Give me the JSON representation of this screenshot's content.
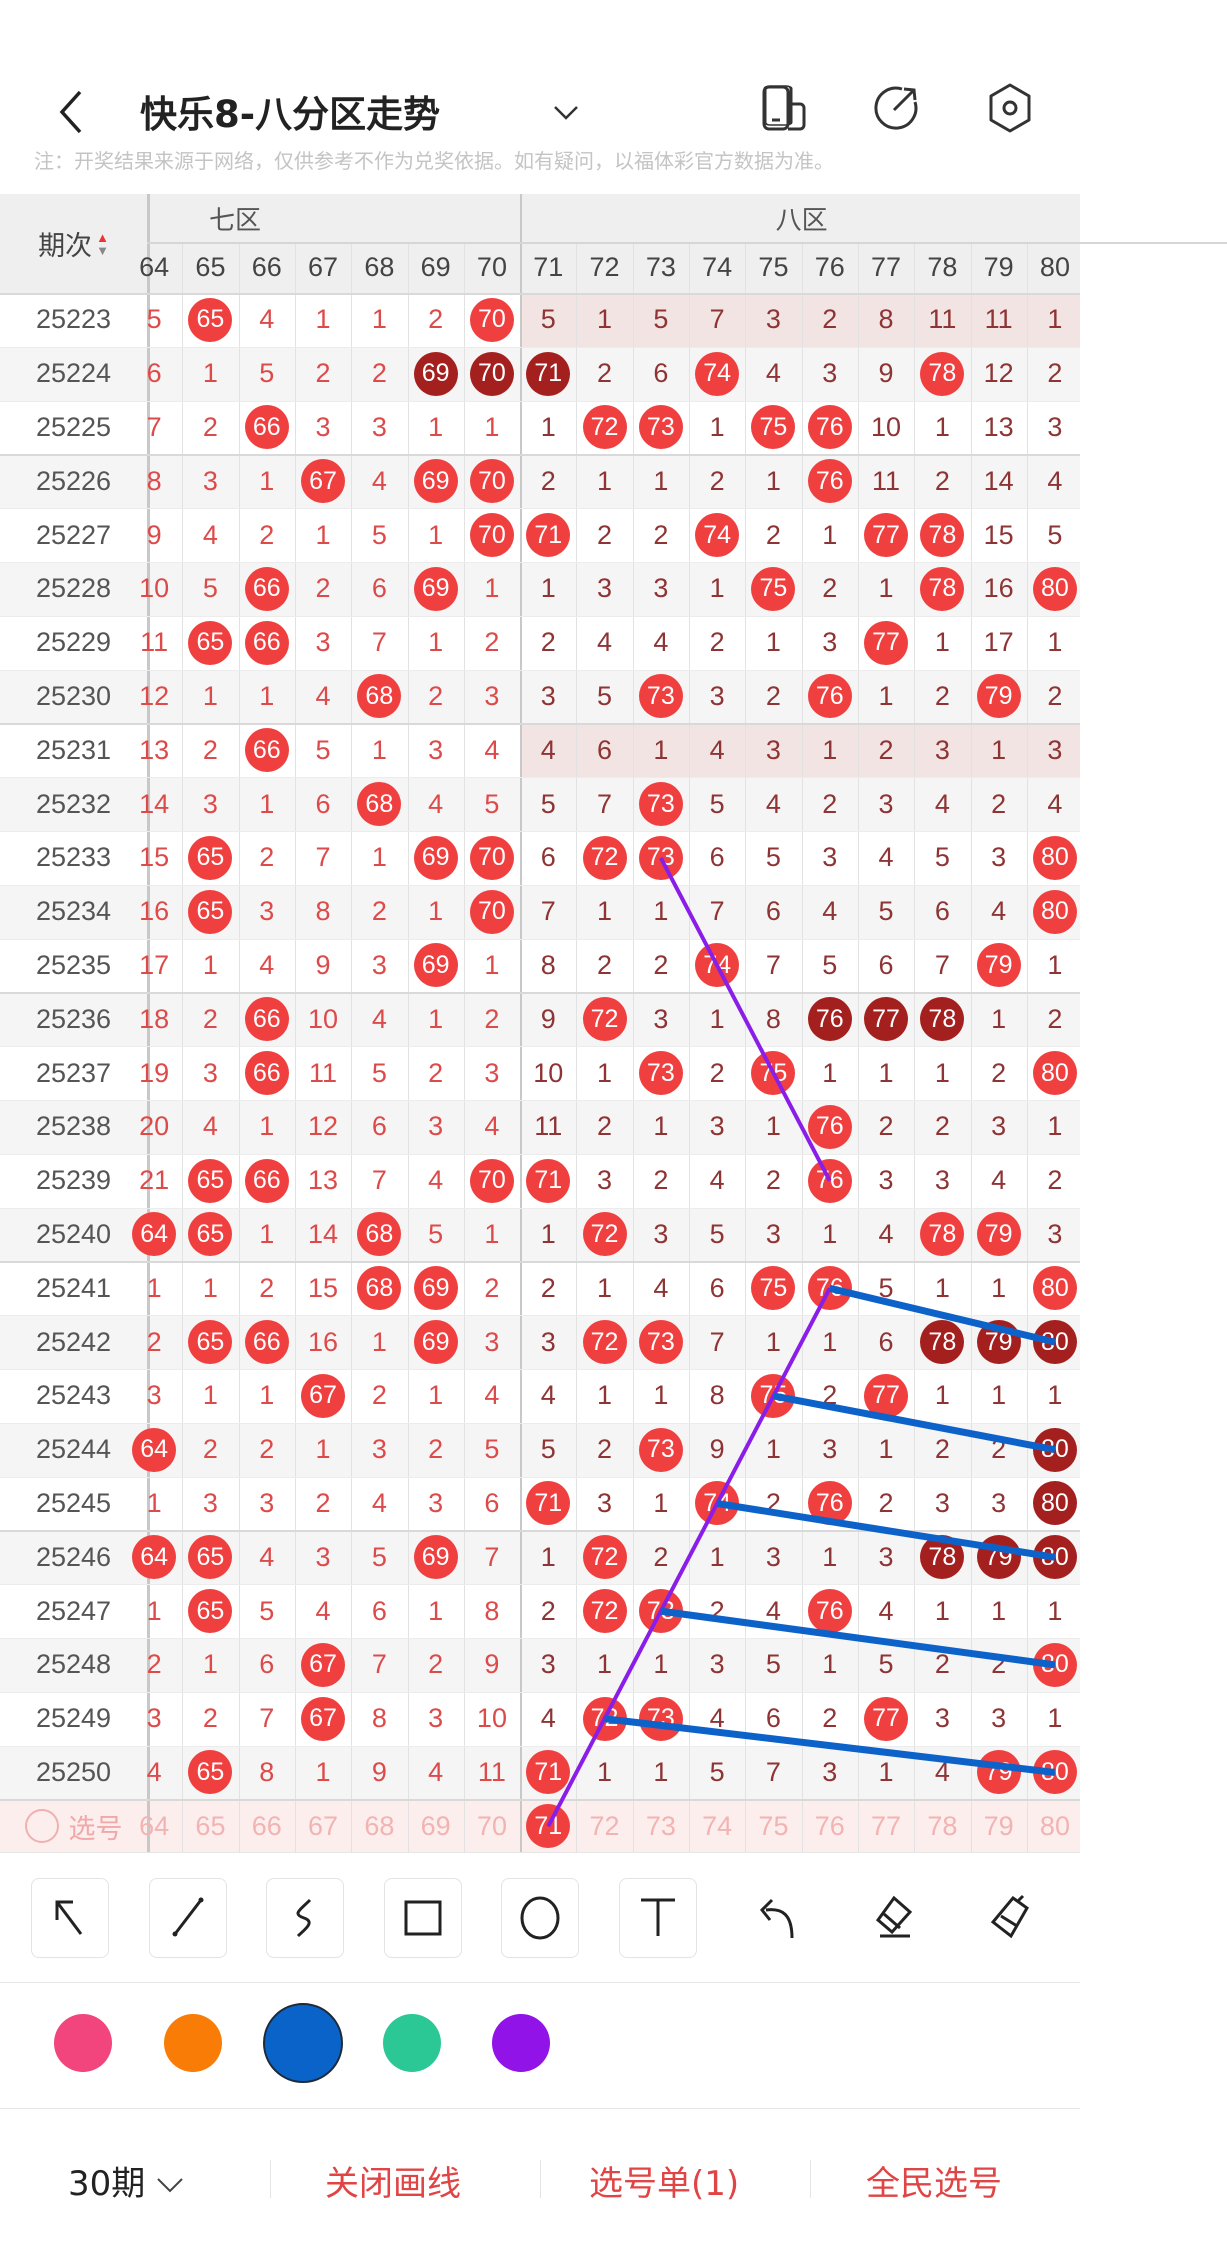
{
  "header": {
    "title": "快乐8-八分区走势",
    "icons": [
      "back-icon",
      "chevron-down-icon",
      "device-switch-icon",
      "share-icon",
      "settings-icon"
    ]
  },
  "note": "注：开奖结果来源于网络，仅供参考不作为兑奖依据。如有疑问，以福体彩官方数据为准。",
  "table": {
    "period_header": "期次",
    "zones": [
      {
        "label": "七区",
        "from": 64,
        "to": 70
      },
      {
        "label": "八区",
        "from": 71,
        "to": 80
      }
    ],
    "columns": [
      "64",
      "65",
      "66",
      "67",
      "68",
      "69",
      "70",
      "71",
      "72",
      "73",
      "74",
      "75",
      "76",
      "77",
      "78",
      "79",
      "80"
    ],
    "legend": {
      "state_0": "miss count",
      "state_1": "drawn",
      "state_2": "drawn consecutively"
    },
    "colors": {
      "ball": "#ef3f3f",
      "ball_repeat": "#a3201f",
      "zone7_text": "#dd4a4a",
      "zone8_text": "#8e3434"
    },
    "highlight_rows": [
      "25223",
      "25231"
    ],
    "rows": [
      {
        "period": "25223",
        "cells": [
          "5",
          "65",
          "4",
          "1",
          "1",
          "2",
          "70",
          "5",
          "1",
          "5",
          "7",
          "3",
          "2",
          "8",
          "11",
          "11",
          "1"
        ],
        "state": "01000010000000000"
      },
      {
        "period": "25224",
        "cells": [
          "6",
          "1",
          "5",
          "2",
          "2",
          "69",
          "70",
          "71",
          "2",
          "6",
          "74",
          "4",
          "3",
          "9",
          "78",
          "12",
          "2"
        ],
        "state": "00000222001000100"
      },
      {
        "period": "25225",
        "cells": [
          "7",
          "2",
          "66",
          "3",
          "3",
          "1",
          "1",
          "1",
          "72",
          "73",
          "1",
          "75",
          "76",
          "10",
          "1",
          "13",
          "3"
        ],
        "state": "00100000110110000"
      },
      {
        "period": "25226",
        "cells": [
          "8",
          "3",
          "1",
          "67",
          "4",
          "69",
          "70",
          "2",
          "1",
          "1",
          "2",
          "1",
          "76",
          "11",
          "2",
          "14",
          "4"
        ],
        "state": "00010110000010000"
      },
      {
        "period": "25227",
        "cells": [
          "9",
          "4",
          "2",
          "1",
          "5",
          "1",
          "70",
          "71",
          "2",
          "2",
          "74",
          "2",
          "1",
          "77",
          "78",
          "15",
          "5"
        ],
        "state": "00000011001001100"
      },
      {
        "period": "25228",
        "cells": [
          "10",
          "5",
          "66",
          "2",
          "6",
          "69",
          "1",
          "1",
          "3",
          "3",
          "1",
          "75",
          "2",
          "1",
          "78",
          "16",
          "80"
        ],
        "state": "00100100000100101"
      },
      {
        "period": "25229",
        "cells": [
          "11",
          "65",
          "66",
          "3",
          "7",
          "1",
          "2",
          "2",
          "4",
          "4",
          "2",
          "1",
          "3",
          "77",
          "1",
          "17",
          "1"
        ],
        "state": "01100000000001000"
      },
      {
        "period": "25230",
        "cells": [
          "12",
          "1",
          "1",
          "4",
          "68",
          "2",
          "3",
          "3",
          "5",
          "73",
          "3",
          "2",
          "76",
          "1",
          "2",
          "79",
          "2"
        ],
        "state": "00001000010010010"
      },
      {
        "period": "25231",
        "cells": [
          "13",
          "2",
          "66",
          "5",
          "1",
          "3",
          "4",
          "4",
          "6",
          "1",
          "4",
          "3",
          "1",
          "2",
          "3",
          "1",
          "3"
        ],
        "state": "00100000000000000"
      },
      {
        "period": "25232",
        "cells": [
          "14",
          "3",
          "1",
          "6",
          "68",
          "4",
          "5",
          "5",
          "7",
          "73",
          "5",
          "4",
          "2",
          "3",
          "4",
          "2",
          "4"
        ],
        "state": "00001000010000000"
      },
      {
        "period": "25233",
        "cells": [
          "15",
          "65",
          "2",
          "7",
          "1",
          "69",
          "70",
          "6",
          "72",
          "73",
          "6",
          "5",
          "3",
          "4",
          "5",
          "3",
          "80"
        ],
        "state": "01000110110000001"
      },
      {
        "period": "25234",
        "cells": [
          "16",
          "65",
          "3",
          "8",
          "2",
          "1",
          "70",
          "7",
          "1",
          "1",
          "7",
          "6",
          "4",
          "5",
          "6",
          "4",
          "80"
        ],
        "state": "01000010000000001"
      },
      {
        "period": "25235",
        "cells": [
          "17",
          "1",
          "4",
          "9",
          "3",
          "69",
          "1",
          "8",
          "2",
          "2",
          "74",
          "7",
          "5",
          "6",
          "7",
          "79",
          "1"
        ],
        "state": "00000100001000010"
      },
      {
        "period": "25236",
        "cells": [
          "18",
          "2",
          "66",
          "10",
          "4",
          "1",
          "2",
          "9",
          "72",
          "3",
          "1",
          "8",
          "76",
          "77",
          "78",
          "1",
          "2"
        ],
        "state": "00100000100022200"
      },
      {
        "period": "25237",
        "cells": [
          "19",
          "3",
          "66",
          "11",
          "5",
          "2",
          "3",
          "10",
          "1",
          "73",
          "2",
          "75",
          "1",
          "1",
          "1",
          "2",
          "80"
        ],
        "state": "00100000010100001"
      },
      {
        "period": "25238",
        "cells": [
          "20",
          "4",
          "1",
          "12",
          "6",
          "3",
          "4",
          "11",
          "2",
          "1",
          "3",
          "1",
          "76",
          "2",
          "2",
          "3",
          "1"
        ],
        "state": "00000000000010000"
      },
      {
        "period": "25239",
        "cells": [
          "21",
          "65",
          "66",
          "13",
          "7",
          "4",
          "70",
          "71",
          "3",
          "2",
          "4",
          "2",
          "76",
          "3",
          "3",
          "4",
          "2"
        ],
        "state": "01100011000010000"
      },
      {
        "period": "25240",
        "cells": [
          "64",
          "65",
          "1",
          "14",
          "68",
          "5",
          "1",
          "1",
          "72",
          "3",
          "5",
          "3",
          "1",
          "4",
          "78",
          "79",
          "3"
        ],
        "state": "11001000100000110"
      },
      {
        "period": "25241",
        "cells": [
          "1",
          "1",
          "2",
          "15",
          "68",
          "69",
          "2",
          "2",
          "1",
          "4",
          "6",
          "75",
          "76",
          "5",
          "1",
          "1",
          "80"
        ],
        "state": "00001100000110001"
      },
      {
        "period": "25242",
        "cells": [
          "2",
          "65",
          "66",
          "16",
          "1",
          "69",
          "3",
          "3",
          "72",
          "73",
          "7",
          "1",
          "1",
          "6",
          "78",
          "79",
          "80"
        ],
        "state": "01100100110000222"
      },
      {
        "period": "25243",
        "cells": [
          "3",
          "1",
          "1",
          "67",
          "2",
          "1",
          "4",
          "4",
          "1",
          "1",
          "8",
          "75",
          "2",
          "77",
          "1",
          "1",
          "1"
        ],
        "state": "00010000000101000"
      },
      {
        "period": "25244",
        "cells": [
          "64",
          "2",
          "2",
          "1",
          "3",
          "2",
          "5",
          "5",
          "2",
          "73",
          "9",
          "1",
          "3",
          "1",
          "2",
          "2",
          "80"
        ],
        "state": "10000000010000002"
      },
      {
        "period": "25245",
        "cells": [
          "1",
          "3",
          "3",
          "2",
          "4",
          "3",
          "6",
          "71",
          "3",
          "1",
          "74",
          "2",
          "76",
          "2",
          "3",
          "3",
          "80"
        ],
        "state": "00000001001010002"
      },
      {
        "period": "25246",
        "cells": [
          "64",
          "65",
          "4",
          "3",
          "5",
          "69",
          "7",
          "1",
          "72",
          "2",
          "1",
          "3",
          "1",
          "3",
          "78",
          "79",
          "80"
        ],
        "state": "11000100100000222"
      },
      {
        "period": "25247",
        "cells": [
          "1",
          "65",
          "5",
          "4",
          "6",
          "1",
          "8",
          "2",
          "72",
          "73",
          "2",
          "4",
          "76",
          "4",
          "1",
          "1",
          "1"
        ],
        "state": "01000000110010000"
      },
      {
        "period": "25248",
        "cells": [
          "2",
          "1",
          "6",
          "67",
          "7",
          "2",
          "9",
          "3",
          "1",
          "1",
          "3",
          "5",
          "1",
          "5",
          "2",
          "2",
          "80"
        ],
        "state": "00010000000000001"
      },
      {
        "period": "25249",
        "cells": [
          "3",
          "2",
          "7",
          "67",
          "8",
          "3",
          "10",
          "4",
          "72",
          "73",
          "4",
          "6",
          "2",
          "77",
          "3",
          "3",
          "1"
        ],
        "state": "00010000110001000"
      },
      {
        "period": "25250",
        "cells": [
          "4",
          "65",
          "8",
          "1",
          "9",
          "4",
          "11",
          "71",
          "1",
          "1",
          "5",
          "7",
          "3",
          "1",
          "4",
          "79",
          "80"
        ],
        "state": "01000001000000011"
      }
    ],
    "select_row": {
      "label": "选号",
      "selected": [
        "71"
      ]
    }
  },
  "drawings": [
    {
      "color": "#8a1ee8",
      "from": {
        "col": "73",
        "period": "25233"
      },
      "to": {
        "col": "76",
        "period": "25239"
      }
    },
    {
      "color": "#8a1ee8",
      "from": {
        "col": "71",
        "period": "选号"
      },
      "to": {
        "col": "76",
        "period": "25241"
      }
    },
    {
      "color": "#0d62c9",
      "from": {
        "col": "76",
        "period": "25241"
      },
      "to": {
        "col": "80",
        "period": "25242"
      }
    },
    {
      "color": "#0d62c9",
      "from": {
        "col": "75",
        "period": "25243"
      },
      "to": {
        "col": "80",
        "period": "25244"
      }
    },
    {
      "color": "#0d62c9",
      "from": {
        "col": "74",
        "period": "25245"
      },
      "to": {
        "col": "80",
        "period": "25246"
      }
    },
    {
      "color": "#0d62c9",
      "from": {
        "col": "73",
        "period": "25247"
      },
      "to": {
        "col": "80",
        "period": "25248"
      }
    },
    {
      "color": "#0d62c9",
      "from": {
        "col": "72",
        "period": "25249"
      },
      "to": {
        "col": "80",
        "period": "25250"
      }
    }
  ],
  "tools": [
    {
      "name": "select-arrow",
      "selected": true
    },
    {
      "name": "line"
    },
    {
      "name": "curve"
    },
    {
      "name": "rectangle"
    },
    {
      "name": "circle"
    },
    {
      "name": "text"
    },
    {
      "name": "undo"
    },
    {
      "name": "eraser"
    },
    {
      "name": "clear-brush"
    }
  ],
  "palette": {
    "colors": [
      "#f2457e",
      "#f97c06",
      "#0a63c8",
      "#2bc896",
      "#9213e8"
    ],
    "selected": "#0a63c8"
  },
  "bottom_bar": {
    "period_select": "30期",
    "close_drawing": "关闭画线",
    "pick_list": "选号单(1)",
    "community_pick": "全民选号"
  }
}
